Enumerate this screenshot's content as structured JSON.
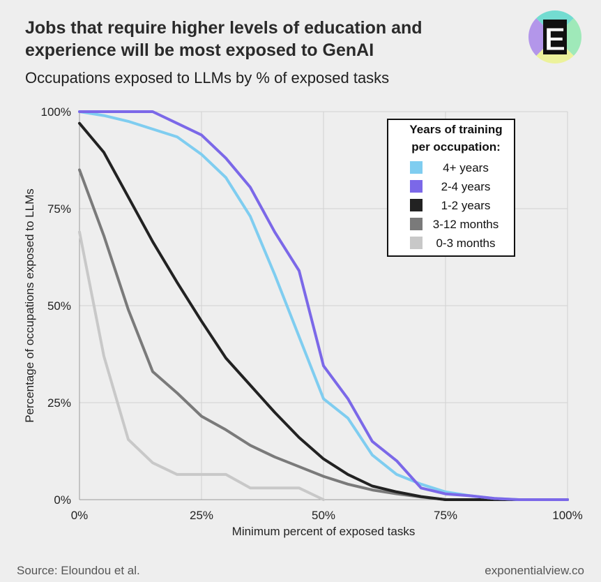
{
  "header": {
    "title_line1": "Jobs that require higher levels of education and",
    "title_line2": "experience will be most exposed to GenAI",
    "subtitle": "Occupations exposed to LLMs by % of exposed tasks",
    "logo_letter": "E"
  },
  "footer": {
    "source": "Source: Eloundou et al.",
    "brand": "exponentialview.co"
  },
  "chart_data": {
    "type": "line",
    "xlabel": "Minimum percent of exposed tasks",
    "ylabel": "Percentage of occupations exposed to LLMs",
    "xlim": [
      0,
      100
    ],
    "ylim": [
      0,
      100
    ],
    "x_ticks": [
      "0%",
      "25%",
      "50%",
      "75%",
      "100%"
    ],
    "y_ticks": [
      "100%",
      "75%",
      "50%",
      "25%",
      "0%"
    ],
    "grid": true,
    "legend_title_line1": "Years of training",
    "legend_title_line2": "per occupation:",
    "legend_position": "top-right",
    "series": [
      {
        "name": "4+ years",
        "color": "#7fcdf0",
        "points": [
          [
            0,
            100
          ],
          [
            5,
            99
          ],
          [
            10,
            97.5
          ],
          [
            15,
            95.5
          ],
          [
            20,
            93.5
          ],
          [
            25,
            89
          ],
          [
            30,
            83
          ],
          [
            35,
            73
          ],
          [
            40,
            58
          ],
          [
            45,
            42
          ],
          [
            50,
            26
          ],
          [
            55,
            21
          ],
          [
            60,
            11.5
          ],
          [
            65,
            6.5
          ],
          [
            70,
            4
          ],
          [
            75,
            2
          ],
          [
            80,
            1
          ],
          [
            85,
            0.3
          ],
          [
            90,
            0
          ],
          [
            100,
            0
          ]
        ]
      },
      {
        "name": "2-4 years",
        "color": "#7b68e8",
        "points": [
          [
            0,
            100
          ],
          [
            5,
            100
          ],
          [
            10,
            100
          ],
          [
            15,
            100
          ],
          [
            20,
            97
          ],
          [
            25,
            94
          ],
          [
            30,
            88
          ],
          [
            35,
            80.5
          ],
          [
            40,
            69
          ],
          [
            45,
            59
          ],
          [
            50,
            34.5
          ],
          [
            55,
            26
          ],
          [
            60,
            15
          ],
          [
            65,
            10
          ],
          [
            70,
            3
          ],
          [
            75,
            1.5
          ],
          [
            80,
            1
          ],
          [
            85,
            0.3
          ],
          [
            90,
            0
          ],
          [
            100,
            0
          ]
        ]
      },
      {
        "name": "1-2 years",
        "color": "#222222",
        "points": [
          [
            0,
            97
          ],
          [
            5,
            89.5
          ],
          [
            10,
            78
          ],
          [
            15,
            66.5
          ],
          [
            20,
            56
          ],
          [
            25,
            46
          ],
          [
            30,
            36.5
          ],
          [
            35,
            29.5
          ],
          [
            40,
            22.5
          ],
          [
            45,
            16
          ],
          [
            50,
            10.5
          ],
          [
            55,
            6.5
          ],
          [
            60,
            3.5
          ],
          [
            65,
            2
          ],
          [
            70,
            0.8
          ],
          [
            75,
            0
          ],
          [
            100,
            0
          ]
        ]
      },
      {
        "name": "3-12 months",
        "color": "#7a7a7a",
        "points": [
          [
            0,
            85
          ],
          [
            5,
            68
          ],
          [
            10,
            49
          ],
          [
            15,
            33
          ],
          [
            20,
            27.5
          ],
          [
            25,
            21.5
          ],
          [
            30,
            18
          ],
          [
            35,
            14
          ],
          [
            40,
            11
          ],
          [
            45,
            8.5
          ],
          [
            50,
            6
          ],
          [
            55,
            4
          ],
          [
            60,
            2.5
          ],
          [
            65,
            1.5
          ],
          [
            70,
            0.7
          ],
          [
            75,
            0
          ],
          [
            100,
            0
          ]
        ]
      },
      {
        "name": "0-3 months",
        "color": "#c8c8c8",
        "points": [
          [
            0,
            69
          ],
          [
            5,
            37
          ],
          [
            10,
            15.5
          ],
          [
            15,
            9.5
          ],
          [
            20,
            6.5
          ],
          [
            25,
            6.5
          ],
          [
            30,
            6.5
          ],
          [
            35,
            3
          ],
          [
            40,
            3
          ],
          [
            45,
            3
          ],
          [
            50,
            0
          ]
        ]
      }
    ]
  }
}
